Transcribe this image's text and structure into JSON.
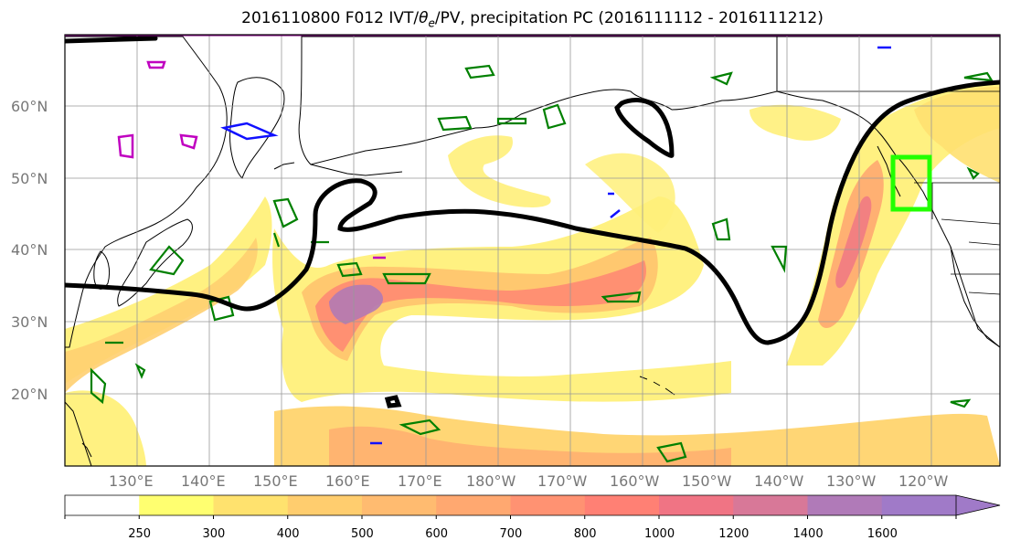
{
  "title": {
    "prefix": "2016110800 F012 IVT/",
    "theta": "θ",
    "theta_sub": "e",
    "suffix": "/PV, precipitation PC (2016111112 - 2016111212)"
  },
  "map": {
    "lat_labels": [
      "60°N",
      "50°N",
      "40°N",
      "30°N",
      "20°N"
    ],
    "lon_labels": [
      "130°E",
      "140°E",
      "150°E",
      "160°E",
      "170°E",
      "180°W",
      "170°W",
      "160°W",
      "150°W",
      "140°W",
      "130°W",
      "120°W"
    ],
    "highlight_box_color": "#22ff00",
    "pv_contour_color": "#000000",
    "precip_contour_color": "#008000"
  },
  "colorbar": {
    "labels": [
      "250",
      "300",
      "400",
      "500",
      "600",
      "700",
      "800",
      "1000",
      "1200",
      "1400",
      "1600"
    ],
    "colors": [
      "#ffffff",
      "#ffff70",
      "#ffe26e",
      "#ffcd6e",
      "#ffbb70",
      "#ffa870",
      "#ff9272",
      "#ff8074",
      "#f07484",
      "#d87898",
      "#b07ab8",
      "#a07ac8"
    ]
  }
}
